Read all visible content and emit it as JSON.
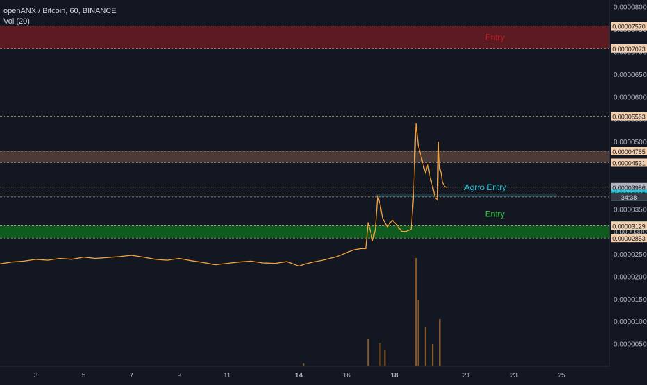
{
  "header": {
    "symbol_line": "openANX / Bitcoin, 60, BINANCE",
    "volume_line": "Vol (20)"
  },
  "colors": {
    "background": "#131722",
    "price_line": "#f7a23b",
    "zone_red": "#5c1a22",
    "zone_brown": "#4b3a35",
    "zone_green": "#0f5a1e",
    "label_red": "#c21d25",
    "label_cyan": "#26c6da",
    "label_green": "#2bd13a",
    "volume_bar": "#8a5a25"
  },
  "chart_data": {
    "type": "line",
    "title": "",
    "price_axis": {
      "ticks": [
        "0.00008000",
        "0.00007500",
        "0.00007000",
        "0.00006500",
        "0.00006000",
        "0.00005500",
        "0.00005000",
        "0.00004500",
        "0.00004000",
        "0.00003500",
        "0.00003000",
        "0.00002500",
        "0.00002000",
        "0.00001500",
        "0.00001000",
        "0.00000500"
      ],
      "ylim": [
        0.0,
        8.15e-05
      ]
    },
    "x_axis": {
      "ticks": [
        "3",
        "5",
        "7",
        "9",
        "11",
        "14",
        "16",
        "18",
        "21",
        "23",
        "25"
      ],
      "bold_ticks": [
        "7",
        "14",
        "18"
      ],
      "xlim_days": [
        1.5,
        27.0
      ]
    },
    "price_series": {
      "name": "openANX / Bitcoin",
      "x": [
        1.5,
        2,
        2.5,
        3,
        3.5,
        4,
        4.5,
        5,
        5.5,
        6,
        6.5,
        7,
        7.5,
        8,
        8.5,
        9,
        9.5,
        10,
        10.5,
        11,
        11.5,
        12,
        12.5,
        13,
        13.5,
        14,
        14.3,
        14.6,
        15,
        15.3,
        15.6,
        16,
        16.3,
        16.6,
        16.8,
        16.9,
        17.0,
        17.1,
        17.2,
        17.3,
        17.4,
        17.5,
        17.7,
        17.9,
        18.1,
        18.3,
        18.5,
        18.7,
        18.8,
        18.9,
        19.0,
        19.05,
        19.2,
        19.3,
        19.4,
        19.5,
        19.6,
        19.7,
        19.8,
        19.85,
        19.9,
        19.95,
        20.0,
        20.1,
        20.2
      ],
      "y": [
        2.28e-05,
        2.32e-05,
        2.34e-05,
        2.38e-05,
        2.36e-05,
        2.4e-05,
        2.38e-05,
        2.43e-05,
        2.4e-05,
        2.42e-05,
        2.44e-05,
        2.47e-05,
        2.43e-05,
        2.38e-05,
        2.36e-05,
        2.4e-05,
        2.35e-05,
        2.31e-05,
        2.26e-05,
        2.29e-05,
        2.32e-05,
        2.34e-05,
        2.3e-05,
        2.29e-05,
        2.33e-05,
        2.23e-05,
        2.28e-05,
        2.32e-05,
        2.36e-05,
        2.4e-05,
        2.44e-05,
        2.53e-05,
        2.59e-05,
        2.62e-05,
        2.62e-05,
        3.2e-05,
        3e-05,
        2.78e-05,
        3.05e-05,
        3.8e-05,
        3.6e-05,
        3.3e-05,
        3.1e-05,
        3.25e-05,
        3.15e-05,
        3e-05,
        3e-05,
        3.05e-05,
        3.8e-05,
        5.4e-05,
        4.9e-05,
        4.8e-05,
        4.5e-05,
        4.3e-05,
        4.5e-05,
        4.2e-05,
        4e-05,
        3.75e-05,
        3.7e-05,
        5e-05,
        4.4e-05,
        4.3e-05,
        4.1e-05,
        4e-05,
        3.98e-05
      ]
    },
    "levels": [
      {
        "value": 7.57e-05,
        "label": "0.00007570",
        "zone_name": "red-zone"
      },
      {
        "value": 7.073e-05,
        "label": "0.00007073",
        "zone_name": "red-zone"
      },
      {
        "value": 5.563e-05,
        "label": "0.00005563",
        "zone_name": ""
      },
      {
        "value": 4.785e-05,
        "label": "0.00004785",
        "zone_name": "brown-zone"
      },
      {
        "value": 4.531e-05,
        "label": "0.00004531",
        "zone_name": "brown-zone"
      },
      {
        "value": 3.986e-05,
        "label": "0.00003986",
        "zone_name": "current"
      },
      {
        "value": 3.835e-05,
        "label": "0.00003835",
        "zone_name": "agro"
      },
      {
        "value": 3.768e-05,
        "label": "0.00003768",
        "zone_name": "agro"
      },
      {
        "value": 3.13e-05,
        "label": "0.00003130",
        "zone_name": "green-zone"
      },
      {
        "value": 3.129e-05,
        "label": "0.00003129",
        "zone_name": ""
      },
      {
        "value": 2.853e-05,
        "label": "0.00002853",
        "zone_name": "green-zone"
      }
    ],
    "countdown": "34:38",
    "annotations": [
      {
        "text": "Entry",
        "color": "#c21d25",
        "price": 7.32e-05,
        "day": 22.2
      },
      {
        "text": "Agrro Entry",
        "color": "#26c6da",
        "price": 3.986e-05,
        "day": 21.8
      },
      {
        "text": "Entry",
        "color": "#2bd13a",
        "price": 3.39e-05,
        "day": 22.2
      }
    ],
    "volume": {
      "x": [
        14.2,
        16.9,
        17.4,
        17.6,
        18.9,
        19.0,
        19.3,
        19.6,
        19.9
      ],
      "v": [
        5e-07,
        5e-06,
        4.2e-06,
        3e-06,
        1.95e-05,
        1.2e-05,
        7e-06,
        4e-06,
        8.5e-06
      ]
    }
  }
}
